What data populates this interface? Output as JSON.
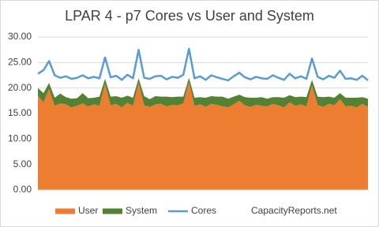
{
  "chart_data": {
    "type": "stacked-area-line",
    "title": "LPAR 4 - p7 Cores vs User and System",
    "categories": [
      null,
      null,
      null,
      null,
      null,
      null,
      null,
      null,
      null,
      null,
      null,
      null,
      null,
      null,
      null,
      null,
      null,
      null,
      null,
      null,
      null,
      null,
      null,
      null,
      null,
      null,
      null,
      null,
      null,
      null,
      null,
      null,
      null,
      null,
      null,
      null,
      null,
      null,
      null,
      null,
      null,
      null,
      null,
      null,
      null,
      null,
      null,
      null,
      null,
      null,
      null,
      null,
      null,
      null,
      null,
      null,
      null,
      null,
      null,
      null
    ],
    "series": [
      {
        "name": "User",
        "color": "#ed7d31",
        "kind": "area",
        "values": [
          18.5,
          17.2,
          19.8,
          16.5,
          17.0,
          16.8,
          16.2,
          16.5,
          17.0,
          16.4,
          16.8,
          16.5,
          20.8,
          16.6,
          16.9,
          16.2,
          17.1,
          16.5,
          21.0,
          16.6,
          16.3,
          16.8,
          16.9,
          16.4,
          16.7,
          16.6,
          17.0,
          21.2,
          16.5,
          16.8,
          16.3,
          16.9,
          16.7,
          16.4,
          16.2,
          16.8,
          17.5,
          16.6,
          16.3,
          16.7,
          16.5,
          16.4,
          16.9,
          16.6,
          16.2,
          17.2,
          16.5,
          16.8,
          16.4,
          20.5,
          16.7,
          16.3,
          16.9,
          16.6,
          17.8,
          16.4,
          16.5,
          16.2,
          16.9,
          16.3
        ]
      },
      {
        "name": "System",
        "color": "#548235",
        "kind": "area",
        "values": [
          1.5,
          1.8,
          1.2,
          1.6,
          1.9,
          1.4,
          1.7,
          1.5,
          2.0,
          1.6,
          1.3,
          1.8,
          1.0,
          1.7,
          1.5,
          1.9,
          1.4,
          1.6,
          0.9,
          1.8,
          1.5,
          1.6,
          1.4,
          1.9,
          1.5,
          1.7,
          1.3,
          0.8,
          1.6,
          1.4,
          1.8,
          1.5,
          1.6,
          1.9,
          1.7,
          1.5,
          1.2,
          1.6,
          1.8,
          1.4,
          1.7,
          1.5,
          1.3,
          1.6,
          1.9,
          1.4,
          1.7,
          1.5,
          1.8,
          1.1,
          1.6,
          1.9,
          1.4,
          1.5,
          1.2,
          1.7,
          1.6,
          1.9,
          1.3,
          1.6
        ]
      },
      {
        "name": "Cores",
        "color": "#5b9bd5",
        "kind": "line",
        "values": [
          22.8,
          23.5,
          25.3,
          22.5,
          22.0,
          22.3,
          21.8,
          22.0,
          22.5,
          21.9,
          22.2,
          21.9,
          26.0,
          22.1,
          22.4,
          21.6,
          22.6,
          21.9,
          27.5,
          22.0,
          21.8,
          22.3,
          22.4,
          21.7,
          22.2,
          22.0,
          22.6,
          27.7,
          21.9,
          22.3,
          21.6,
          22.5,
          22.1,
          21.8,
          21.5,
          22.3,
          23.0,
          22.1,
          21.7,
          22.2,
          21.9,
          21.8,
          22.5,
          22.0,
          21.6,
          22.8,
          21.9,
          22.3,
          21.8,
          25.8,
          22.2,
          21.7,
          22.4,
          22.0,
          23.4,
          21.8,
          21.9,
          21.6,
          22.4,
          21.5
        ]
      }
    ],
    "ylim": [
      0,
      30
    ],
    "yticks": [
      {
        "value": 0,
        "label": "0.00"
      },
      {
        "value": 5,
        "label": "5.00"
      },
      {
        "value": 10,
        "label": "10.00"
      },
      {
        "value": 15,
        "label": "15.00"
      },
      {
        "value": 20,
        "label": "20.00"
      },
      {
        "value": 25,
        "label": "25.00"
      },
      {
        "value": 30,
        "label": "30.00"
      }
    ],
    "grid": true,
    "legend": "bottom",
    "source": "CapacityReports.net"
  }
}
